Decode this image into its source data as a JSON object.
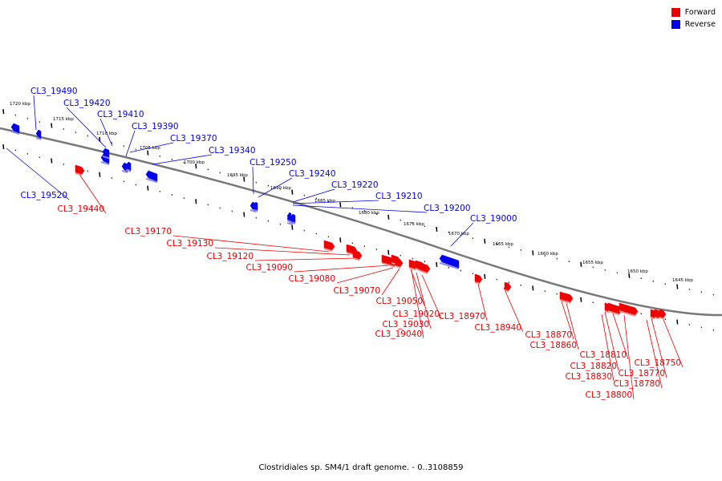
{
  "caption": "Clostridiales sp. SM4/1 draft genome. - 0..3108859",
  "legend": [
    {
      "label": "Forward",
      "color": "#ee0000"
    },
    {
      "label": "Reverse",
      "color": "#0000ee"
    }
  ],
  "colors": {
    "forward": "#ee0000",
    "reverse": "#0000ee",
    "backbone": "#777777"
  },
  "ticks": [
    "1720 kbp",
    "1715 kbp",
    "1710 kbp",
    "1705 kbp",
    "1700 kbp",
    "1695 kbp",
    "1690 kbp",
    "1685 kbp",
    "1680 kbp",
    "1675 kbp",
    "1670 kbp",
    "1665 kbp",
    "1660 kbp",
    "1655 kbp",
    "1650 kbp",
    "1645 kbp"
  ],
  "genes": [
    {
      "name": "CL3_19490",
      "strand": "reverse"
    },
    {
      "name": "CL3_19420",
      "strand": "reverse"
    },
    {
      "name": "CL3_19410",
      "strand": "reverse"
    },
    {
      "name": "CL3_19390",
      "strand": "reverse"
    },
    {
      "name": "CL3_19370",
      "strand": "reverse"
    },
    {
      "name": "CL3_19340",
      "strand": "reverse"
    },
    {
      "name": "CL3_19250",
      "strand": "reverse"
    },
    {
      "name": "CL3_19240",
      "strand": "reverse"
    },
    {
      "name": "CL3_19220",
      "strand": "reverse"
    },
    {
      "name": "CL3_19210",
      "strand": "reverse"
    },
    {
      "name": "CL3_19200",
      "strand": "reverse"
    },
    {
      "name": "CL3_19000",
      "strand": "reverse"
    },
    {
      "name": "CL3_19520",
      "strand": "reverse"
    },
    {
      "name": "CL3_19440",
      "strand": "forward"
    },
    {
      "name": "CL3_19170",
      "strand": "forward"
    },
    {
      "name": "CL3_19130",
      "strand": "forward"
    },
    {
      "name": "CL3_19120",
      "strand": "forward"
    },
    {
      "name": "CL3_19090",
      "strand": "forward"
    },
    {
      "name": "CL3_19080",
      "strand": "forward"
    },
    {
      "name": "CL3_19070",
      "strand": "forward"
    },
    {
      "name": "CL3_19050",
      "strand": "forward"
    },
    {
      "name": "CL3_19020",
      "strand": "forward"
    },
    {
      "name": "CL3_19030",
      "strand": "forward"
    },
    {
      "name": "CL3_19040",
      "strand": "forward"
    },
    {
      "name": "CL3_18970",
      "strand": "forward"
    },
    {
      "name": "CL3_18940",
      "strand": "forward"
    },
    {
      "name": "CL3_18870",
      "strand": "forward"
    },
    {
      "name": "CL3_18860",
      "strand": "forward"
    },
    {
      "name": "CL3_18810",
      "strand": "forward"
    },
    {
      "name": "CL3_18820",
      "strand": "forward"
    },
    {
      "name": "CL3_18830",
      "strand": "forward"
    },
    {
      "name": "CL3_18800",
      "strand": "forward"
    },
    {
      "name": "CL3_18750",
      "strand": "forward"
    },
    {
      "name": "CL3_18770",
      "strand": "forward"
    },
    {
      "name": "CL3_18780",
      "strand": "forward"
    }
  ]
}
